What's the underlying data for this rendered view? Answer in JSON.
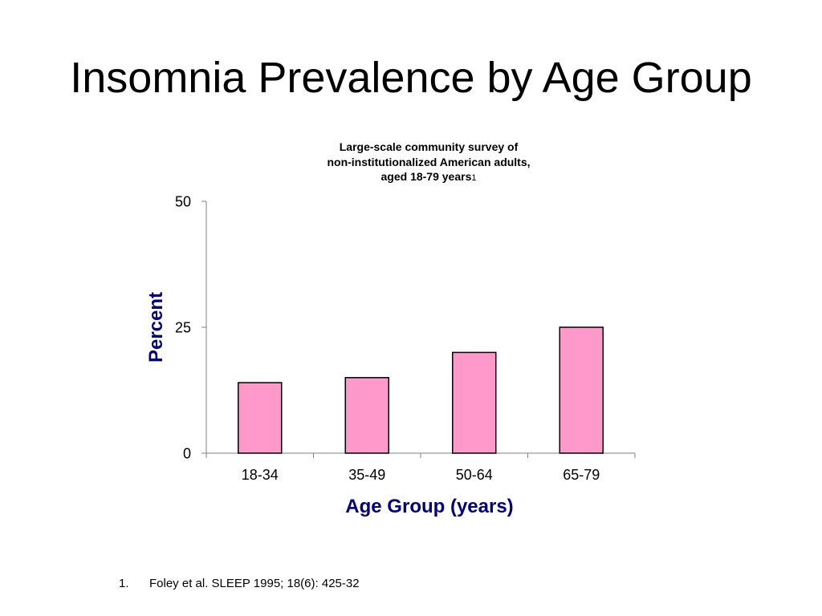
{
  "slide": {
    "title": "Insomnia Prevalence by Age Group"
  },
  "chart_data": {
    "type": "bar",
    "title_lines": [
      "Large-scale community survey of",
      "non-institutionalized American adults,",
      "aged 18-79 years"
    ],
    "title_reference": "1",
    "categories": [
      "18-34",
      "35-49",
      "50-64",
      "65-79"
    ],
    "values": [
      14,
      15,
      20,
      25
    ],
    "xlabel": "Age Group (years)",
    "ylabel": "Percent",
    "ylim": [
      0,
      50
    ],
    "yticks": [
      "0",
      "25",
      "50"
    ],
    "grid": false,
    "legend": "none",
    "bar_color": "#FF99CC",
    "bar_outline": "#000000",
    "label_color": "#000080"
  },
  "footnote": {
    "number": "1.",
    "text": "Foley et al. SLEEP 1995; 18(6): 425-32"
  }
}
